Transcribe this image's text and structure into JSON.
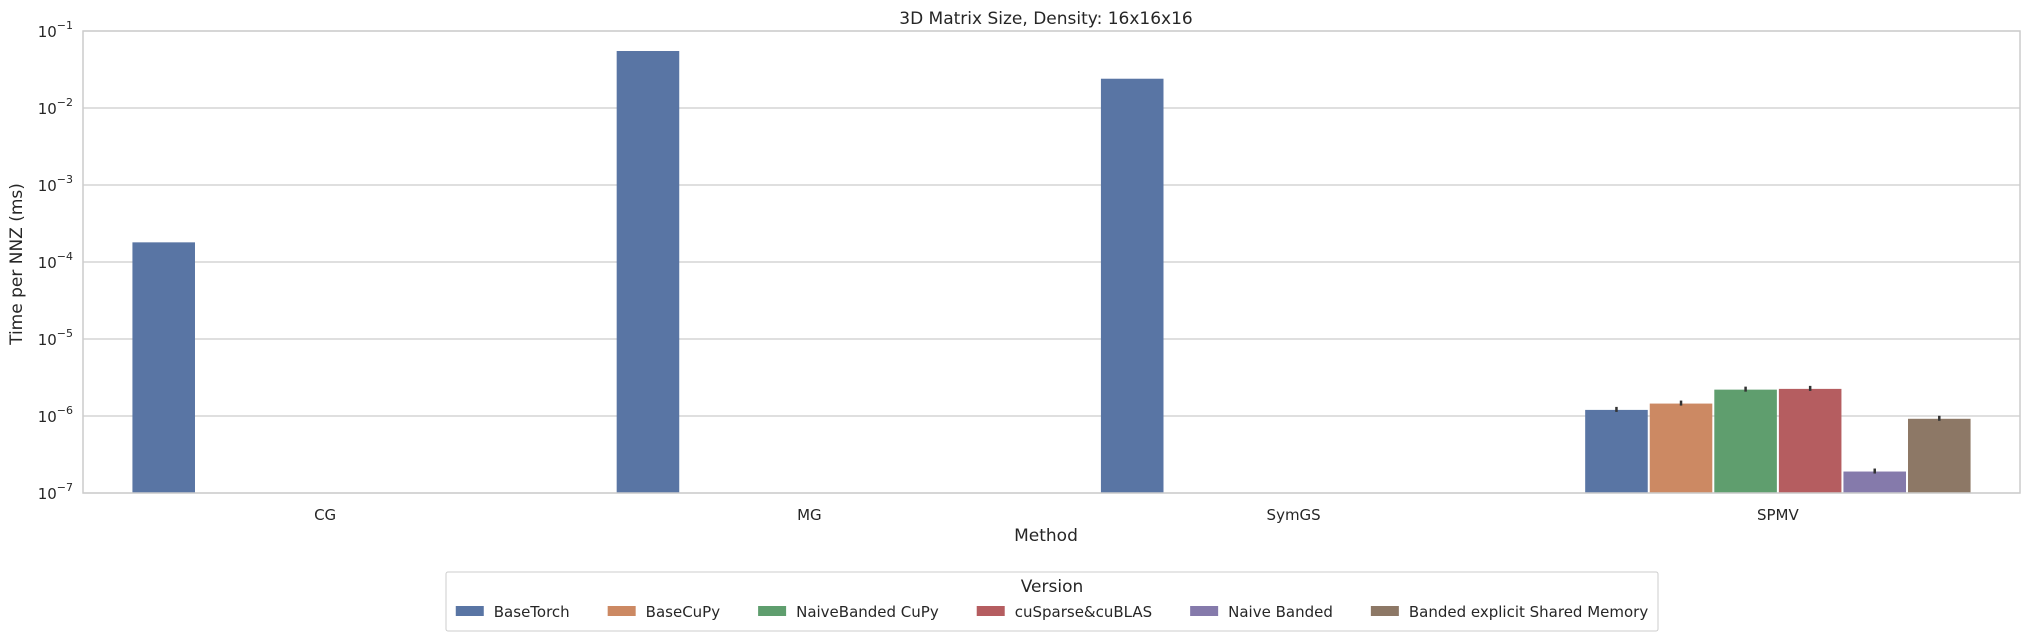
{
  "chart_data": {
    "type": "bar",
    "title": "3D Matrix Size, Density: 16x16x16",
    "xlabel": "Method",
    "ylabel": "Time per NNZ (ms)",
    "yscale": "log",
    "ylim": [
      1e-07,
      0.1
    ],
    "y_ticks": [
      {
        "base": "10",
        "exp": "−7",
        "value": 1e-07
      },
      {
        "base": "10",
        "exp": "−6",
        "value": 1e-06
      },
      {
        "base": "10",
        "exp": "−5",
        "value": 1e-05
      },
      {
        "base": "10",
        "exp": "−4",
        "value": 0.0001
      },
      {
        "base": "10",
        "exp": "−3",
        "value": 0.001
      },
      {
        "base": "10",
        "exp": "−2",
        "value": 0.01
      },
      {
        "base": "10",
        "exp": "−1",
        "value": 0.1
      }
    ],
    "categories": [
      "CG",
      "MG",
      "SymGS",
      "SPMV"
    ],
    "grid": "horizontal",
    "legend": {
      "title": "Version",
      "placement": "bottom-center"
    },
    "series": [
      {
        "name": "BaseTorch",
        "color": "#5975a4",
        "values": [
          0.00018,
          0.055,
          0.024,
          1.2e-06
        ],
        "error_bars": [
          false,
          false,
          false,
          true
        ]
      },
      {
        "name": "BaseCuPy",
        "color": "#cc8963",
        "values": [
          null,
          null,
          null,
          1.45e-06
        ],
        "error_bars": [
          false,
          false,
          false,
          true
        ]
      },
      {
        "name": "NaiveBanded CuPy",
        "color": "#5f9e6e",
        "values": [
          null,
          null,
          null,
          2.2e-06
        ],
        "error_bars": [
          false,
          false,
          false,
          true
        ]
      },
      {
        "name": "cuSparse&cuBLAS",
        "color": "#b55d60",
        "values": [
          null,
          null,
          null,
          2.25e-06
        ],
        "error_bars": [
          false,
          false,
          false,
          true
        ]
      },
      {
        "name": "Naive Banded",
        "color": "#857aab",
        "values": [
          null,
          null,
          null,
          1.9e-07
        ],
        "error_bars": [
          false,
          false,
          false,
          true
        ]
      },
      {
        "name": "Banded explicit Shared Memory",
        "color": "#8d7866",
        "values": [
          null,
          null,
          null,
          9.2e-07
        ],
        "error_bars": [
          false,
          false,
          false,
          true
        ]
      }
    ]
  }
}
